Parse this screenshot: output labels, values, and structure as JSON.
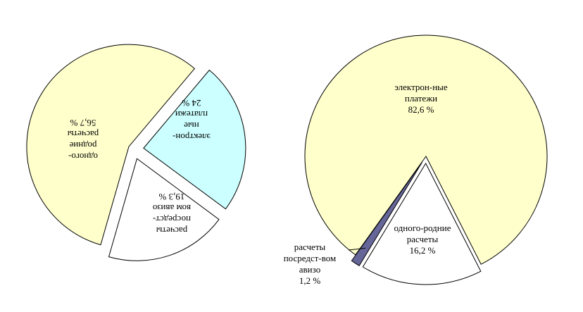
{
  "chart_data": [
    {
      "type": "pie",
      "categories": [
        "одного-\nродние\nрасчеты",
        "электрон-\nные\nплатежи",
        "расчеты\nпосредст-\nвом авизо"
      ],
      "values": [
        56.7,
        24,
        19.3
      ],
      "value_labels": [
        "56,7 %",
        "24 %",
        "19,3 %"
      ],
      "colors": [
        "#ffffcc",
        "#ccffff",
        "#ffffff"
      ]
    },
    {
      "type": "pie",
      "categories": [
        "электрон-ные\nплатежи",
        "одного-родние\nрасчеты",
        "расчеты\nпосредст-вом\nавизо"
      ],
      "values": [
        82.6,
        16.2,
        1.2
      ],
      "value_labels": [
        "82,6 %",
        "16,2 %",
        "1,2 %"
      ],
      "colors": [
        "#ffffcc",
        "#ffffff",
        "#666699"
      ]
    }
  ]
}
